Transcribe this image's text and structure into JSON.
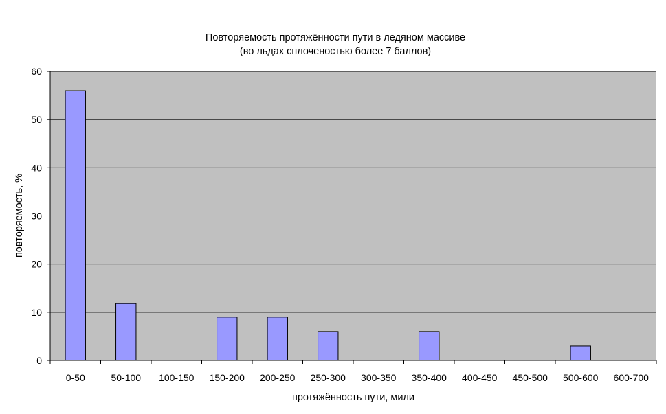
{
  "chart_data": {
    "type": "bar",
    "title": "Повторяемость протяжённости пути в ледяном массиве",
    "subtitle": "(во льдах сплоченостью более 7 баллов)",
    "xlabel": "протяжённость пути, мили",
    "ylabel": "повторяемость, %",
    "categories": [
      "0-50",
      "50-100",
      "100-150",
      "150-200",
      "200-250",
      "250-300",
      "300-350",
      "350-400",
      "400-450",
      "450-500",
      "500-600",
      "600-700"
    ],
    "values": [
      56,
      11.8,
      0,
      9,
      9,
      6,
      0,
      6,
      0,
      0,
      3,
      0
    ],
    "ylim": [
      0,
      60
    ],
    "yticks": [
      0,
      10,
      20,
      30,
      40,
      50,
      60
    ],
    "grid": true,
    "legend": "none",
    "colors": {
      "plot_background": "#c0c0c0",
      "bar_fill": "#9999ff",
      "bar_stroke": "#000000",
      "gridline": "#000000"
    }
  }
}
